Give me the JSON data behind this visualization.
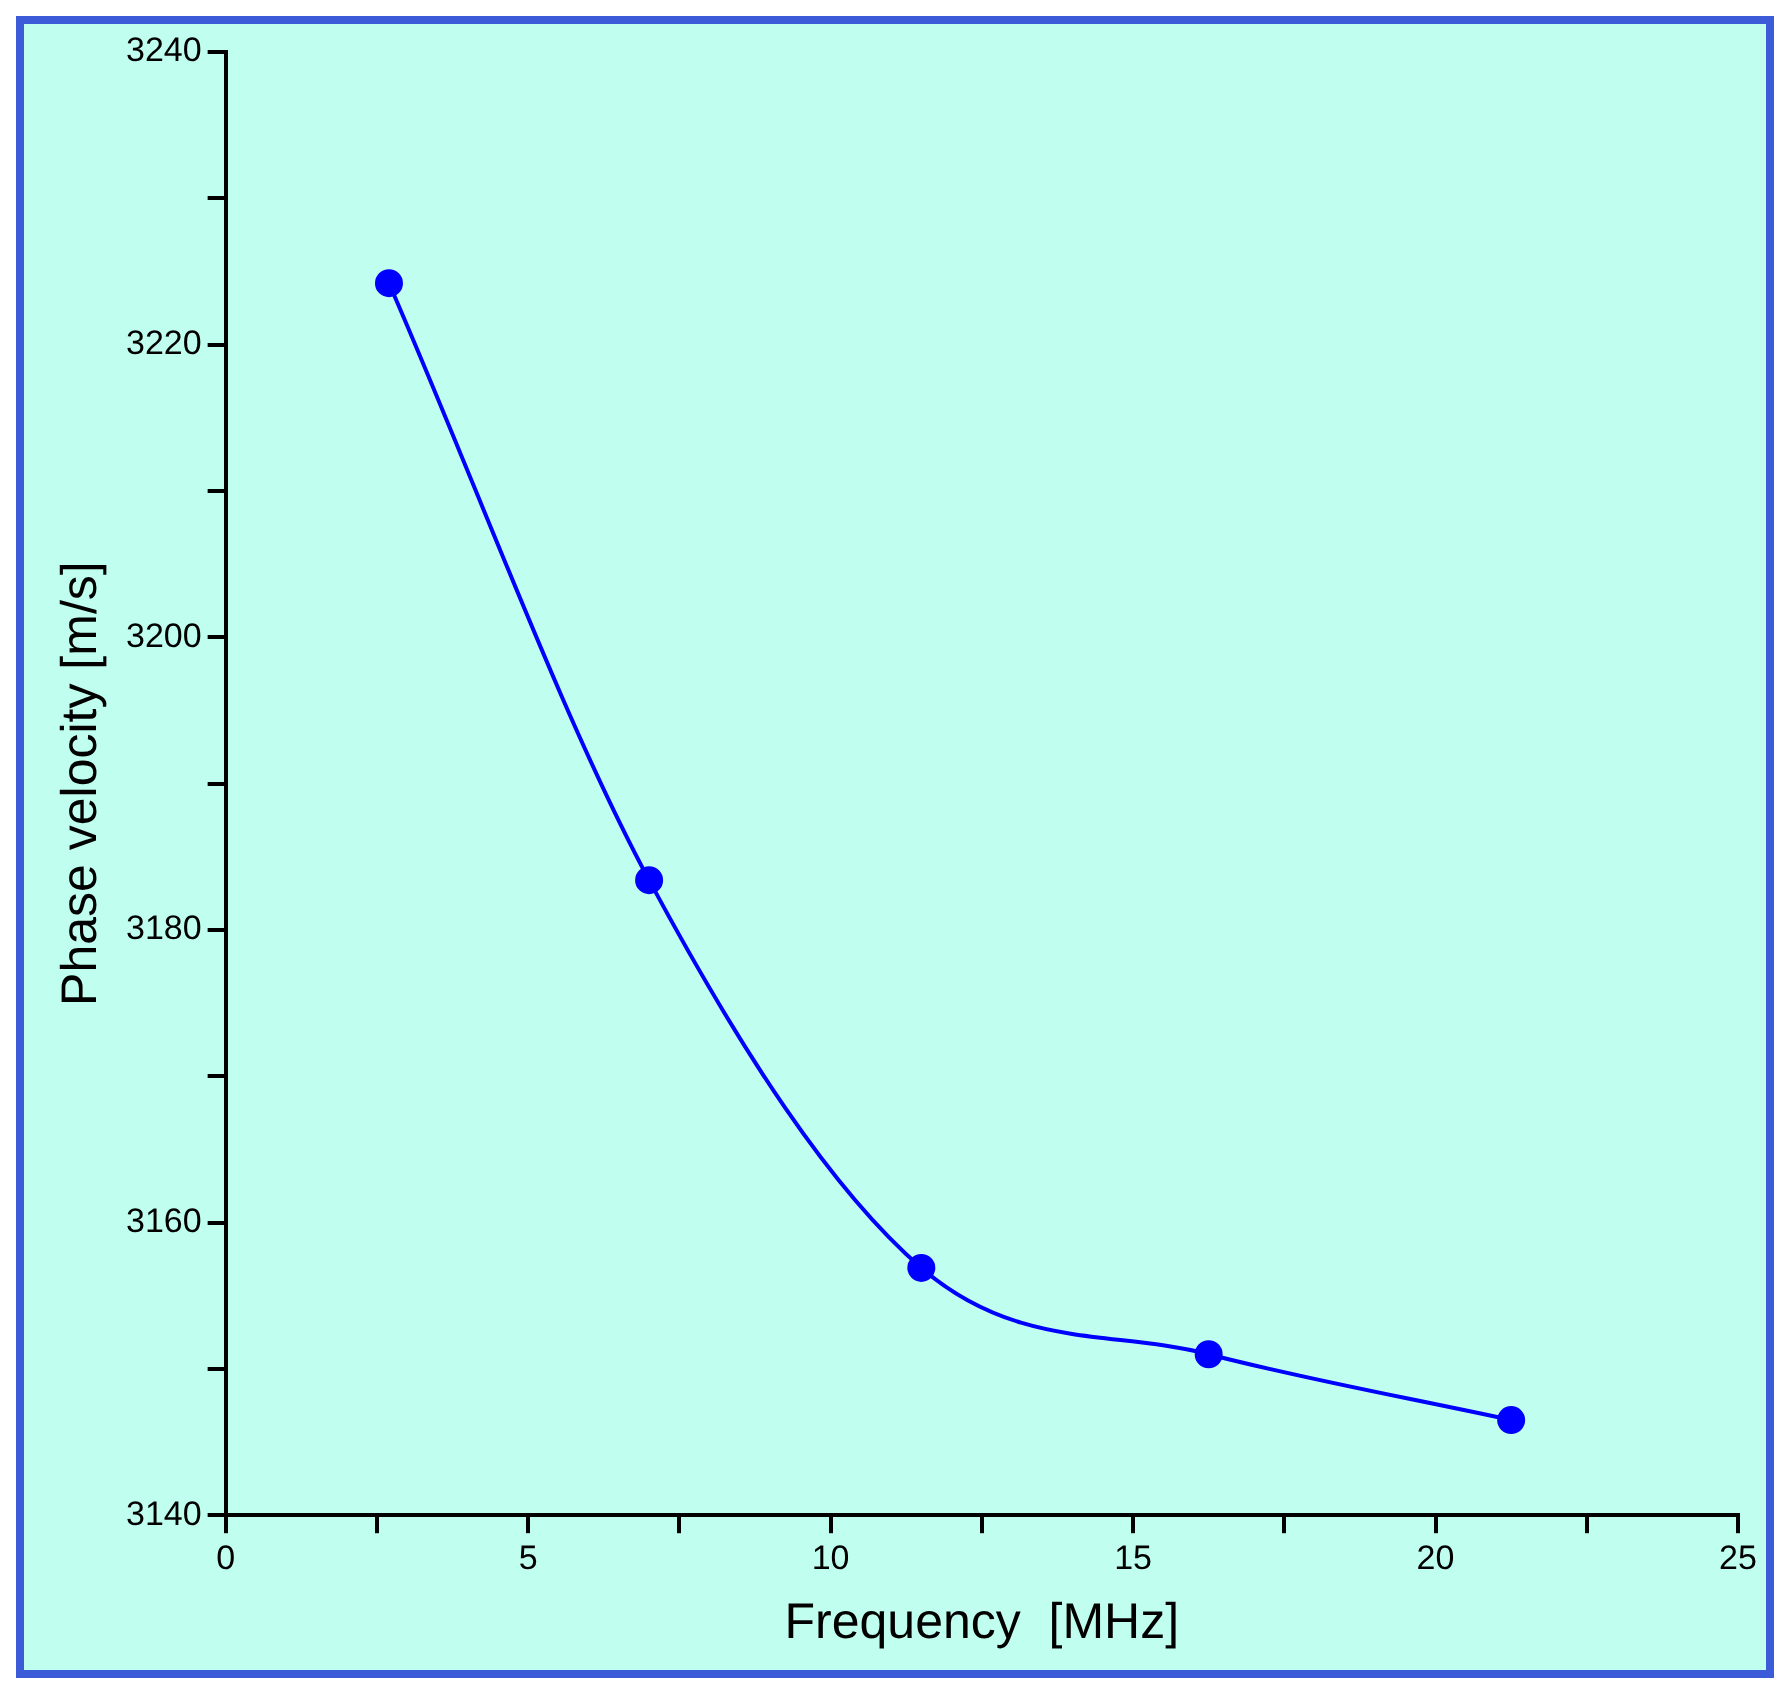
{
  "chart_data": {
    "type": "line",
    "xlabel": "Frequency  [MHz]",
    "ylabel": "Phase velocity [m/s]",
    "x": [
      2.7,
      7.0,
      11.5,
      16.25,
      21.25
    ],
    "series": [
      {
        "color": "#0000ff",
        "values": [
          3224.2,
          3183.4,
          3156.9,
          3151.0,
          3146.5
        ]
      }
    ],
    "xlim": [
      0,
      25
    ],
    "xticks": [
      0,
      {
        "value": 2.5,
        "label": null
      },
      5,
      {
        "value": 7.5,
        "label": null
      },
      10,
      {
        "value": 12.5,
        "label": null
      },
      15,
      {
        "value": 17.5,
        "label": null
      },
      20,
      {
        "value": 22.5,
        "label": null
      },
      25
    ],
    "ylim": [
      3140,
      3240
    ],
    "yticks": [
      3140,
      {
        "value": 3150,
        "label": null
      },
      3160,
      {
        "value": 3170,
        "label": null
      },
      3180,
      {
        "value": 3190,
        "label": null
      },
      3200,
      {
        "value": 3210,
        "label": null
      },
      3220,
      {
        "value": 3230,
        "label": null
      },
      3240
    ],
    "grid": false,
    "legend": false,
    "marker": "circle",
    "line_style": "solid"
  }
}
